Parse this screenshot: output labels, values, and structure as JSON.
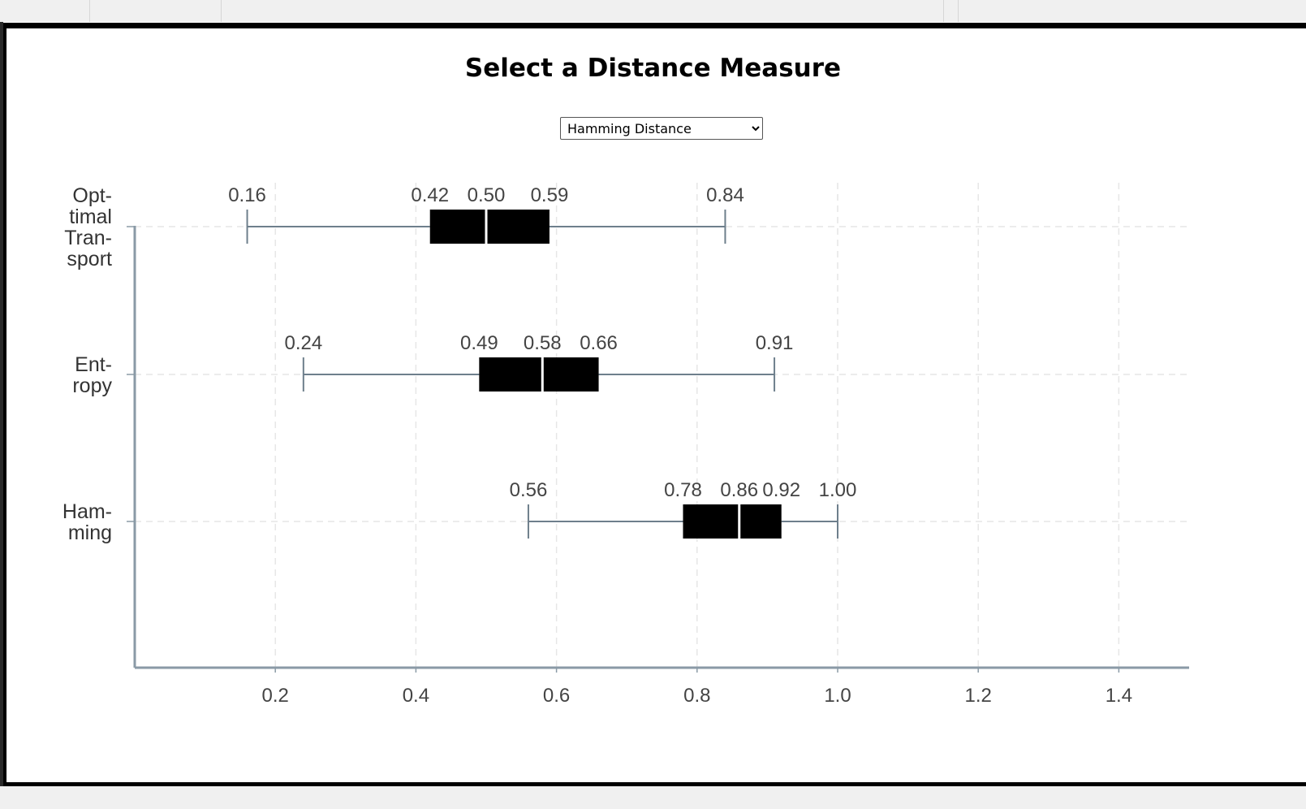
{
  "title": "Select a Distance Measure",
  "selector": {
    "selected": "Hamming Distance"
  },
  "chart_data": {
    "type": "boxplot",
    "orientation": "horizontal",
    "categories": [
      {
        "name": "Optimal Transport",
        "label_lines": [
          "Opt-",
          "timal",
          "Tran-",
          "sport"
        ],
        "min": 0.16,
        "q1": 0.42,
        "median": 0.5,
        "q3": 0.59,
        "max": 0.84,
        "labels": [
          "0.16",
          "0.42",
          "0.50",
          "0.59",
          "0.84"
        ]
      },
      {
        "name": "Entropy",
        "label_lines": [
          "Ent-",
          "ropy"
        ],
        "min": 0.24,
        "q1": 0.49,
        "median": 0.58,
        "q3": 0.66,
        "max": 0.91,
        "labels": [
          "0.24",
          "0.49",
          "0.58",
          "0.66",
          "0.91"
        ]
      },
      {
        "name": "Hamming",
        "label_lines": [
          "Ham-",
          "ming"
        ],
        "min": 0.56,
        "q1": 0.78,
        "median": 0.86,
        "q3": 0.92,
        "max": 1.0,
        "labels": [
          "0.56",
          "0.78",
          "0.86",
          "0.92",
          "1.00"
        ]
      }
    ],
    "xlim": [
      0.0,
      1.5
    ],
    "xticks": [
      0.2,
      0.4,
      0.6,
      0.8,
      1.0,
      1.2,
      1.4
    ],
    "xtick_labels": [
      "0.2",
      "0.4",
      "0.6",
      "0.8",
      "1.0",
      "1.2",
      "1.4"
    ],
    "xlabel": "",
    "ylabel": "",
    "grid": true,
    "colors": {
      "box": "#000000",
      "median": "#ffffff",
      "whisker": "#6e7f8c",
      "axis": "#8a9aa6",
      "grid": "#e6e6e6"
    }
  }
}
